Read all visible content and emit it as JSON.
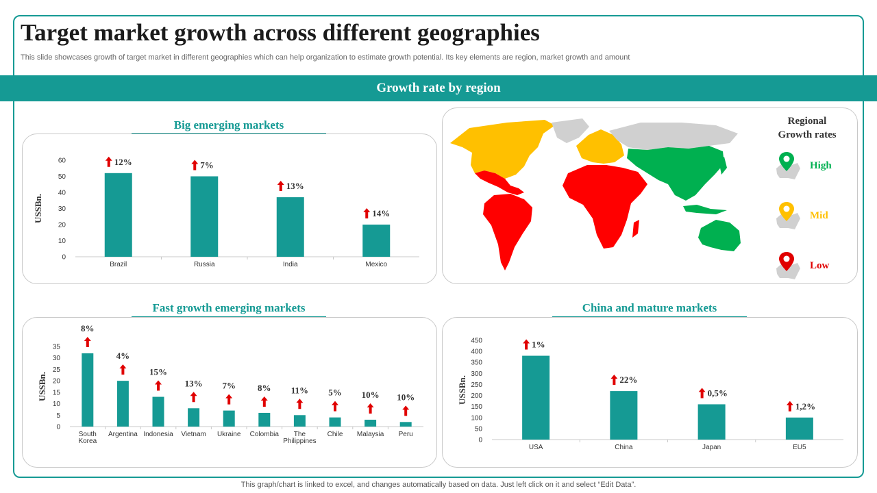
{
  "header": {
    "title": "Target market growth across different geographies",
    "subtitle": "This slide showcases growth of target market in different geographies which can help organization to estimate growth potential. Its key elements are region, market growth and amount"
  },
  "band": {
    "label": "Growth rate by region"
  },
  "colors": {
    "accent": "#159a94",
    "high": "#00b050",
    "mid": "#ffc000",
    "low": "#ff0000",
    "arrow": "#e00000",
    "gray": "#d0d0d0"
  },
  "panels": {
    "big": {
      "title": "Big emerging markets"
    },
    "fast": {
      "title": "Fast growth emerging markets"
    },
    "china": {
      "title": "China and mature markets"
    }
  },
  "map_legend": {
    "title_line1": "Regional",
    "title_line2": "Growth  rates",
    "items": [
      {
        "label": "High",
        "color": "#00b050",
        "icon": "map-pin-icon"
      },
      {
        "label": "Mid",
        "color": "#ffc000",
        "icon": "map-pin-icon"
      },
      {
        "label": "Low",
        "color": "#ff0000",
        "icon": "map-pin-icon"
      }
    ]
  },
  "chart_data": [
    {
      "id": "big",
      "type": "bar",
      "title": "Big emerging markets",
      "ylabel": "USSBn.",
      "ylim": [
        0,
        60
      ],
      "yticks": [
        0,
        10,
        20,
        30,
        40,
        50,
        60
      ],
      "categories": [
        "Brazil",
        "Russia",
        "India",
        "Mexico"
      ],
      "values": [
        52,
        50,
        37,
        20
      ],
      "growth_labels": [
        "12%",
        "7%",
        "13%",
        "14%"
      ]
    },
    {
      "id": "fast",
      "type": "bar",
      "title": "Fast growth emerging markets",
      "ylabel": "USSBn.",
      "ylim": [
        0,
        35
      ],
      "yticks": [
        0,
        5,
        10,
        15,
        20,
        25,
        30,
        35
      ],
      "categories": [
        "South Korea",
        "Argentina",
        "Indonesia",
        "Vietnam",
        "Ukraine",
        "Colombia",
        "The Philippines",
        "Chile",
        "Malaysia",
        "Peru"
      ],
      "values": [
        32,
        20,
        13,
        8,
        7,
        6,
        5,
        4,
        3,
        2
      ],
      "growth_labels": [
        "8%",
        "4%",
        "15%",
        "13%",
        "7%",
        "8%",
        "11%",
        "5%",
        "10%",
        "10%"
      ]
    },
    {
      "id": "china",
      "type": "bar",
      "title": "China and mature markets",
      "ylabel": "USSBn.",
      "ylim": [
        0,
        450
      ],
      "yticks": [
        0,
        50,
        100,
        150,
        200,
        250,
        300,
        350,
        400,
        450
      ],
      "categories": [
        "USA",
        "China",
        "Japan",
        "EU5"
      ],
      "values": [
        380,
        220,
        160,
        100
      ],
      "growth_labels": [
        "1%",
        "22%",
        "0,5%",
        "1,2%"
      ]
    }
  ],
  "footer": {
    "text": "This graph/chart is linked to excel,  and changes automatically based on data. Just left click on it and select “Edit Data”."
  }
}
